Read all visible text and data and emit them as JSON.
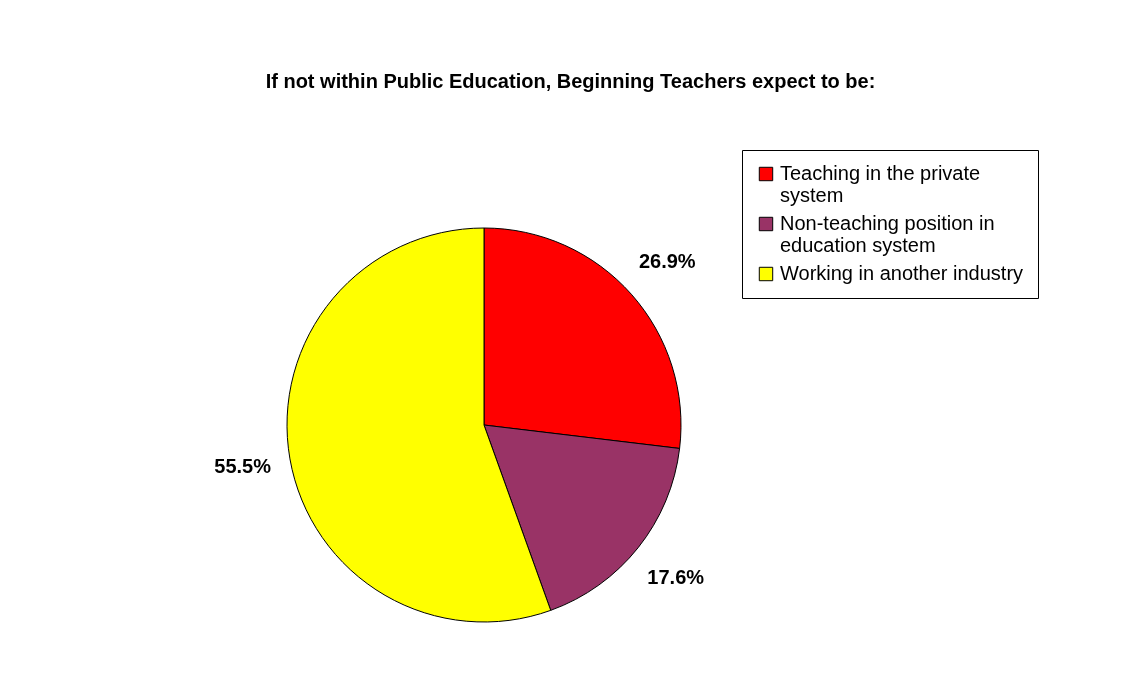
{
  "chart_data": {
    "type": "pie",
    "title": "If not within Public Education,\nBeginning Teachers expect to be:",
    "categories": [
      "Teaching in the private system",
      "Non-teaching position in education system",
      "Working in another industry"
    ],
    "values": [
      26.9,
      17.6,
      55.5
    ],
    "colors": [
      "#ff0000",
      "#993366",
      "#ffff00"
    ],
    "value_labels": [
      "26.9%",
      "17.6%",
      "55.5%"
    ],
    "legend": "right"
  }
}
